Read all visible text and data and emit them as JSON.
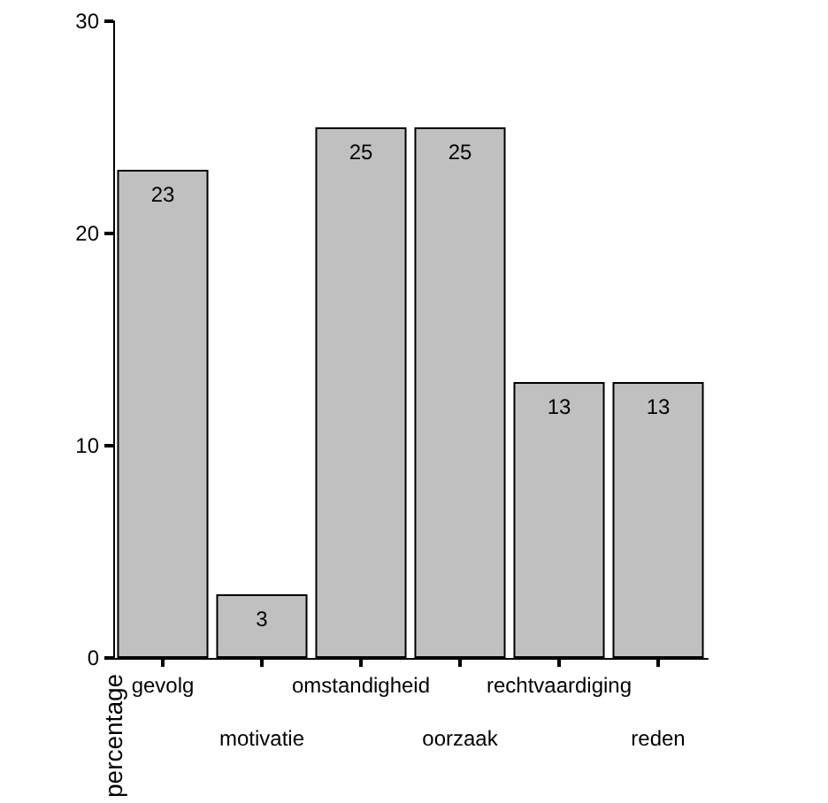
{
  "chart_data": {
    "type": "bar",
    "ylabel": "percentage",
    "categories": [
      "gevolg",
      "motivatie",
      "omstandigheid",
      "oorzaak",
      "rechtvaardiging",
      "reden"
    ],
    "values": [
      23,
      3,
      25,
      25,
      13,
      13
    ],
    "color": "#c0c0c0",
    "ylim": [
      0,
      30
    ],
    "yticks": [
      0,
      10,
      20,
      30
    ],
    "grid": false,
    "data_labels": true
  }
}
